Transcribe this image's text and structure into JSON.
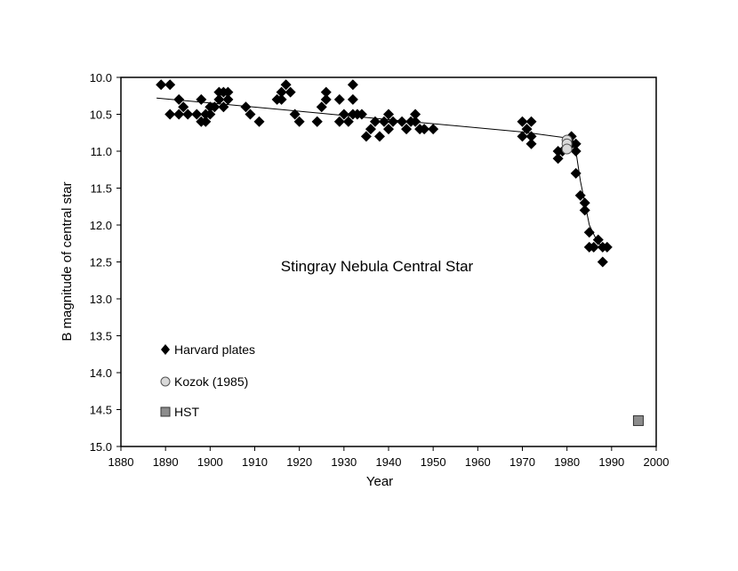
{
  "chart_data": {
    "type": "scatter",
    "title": "Stingray Nebula Central Star",
    "xlabel": "Year",
    "ylabel": "B magnitude of central star",
    "xlim": [
      1880,
      2000
    ],
    "ylim": [
      10.0,
      15.0
    ],
    "y_reversed": true,
    "xticks": [
      1880,
      1890,
      1900,
      1910,
      1920,
      1930,
      1940,
      1950,
      1960,
      1970,
      1980,
      1990,
      2000
    ],
    "yticks": [
      10.0,
      10.5,
      11.0,
      11.5,
      12.0,
      12.5,
      13.0,
      13.5,
      14.0,
      14.5,
      15.0
    ],
    "ytick_labels": [
      "10.0",
      "10.5",
      "11.0",
      "11.5",
      "12.0",
      "12.5",
      "13.0",
      "13.5",
      "14.0",
      "14.5",
      "15.0"
    ],
    "grid": false,
    "legend_position": "lower-left",
    "series": [
      {
        "name": "Harvard plates",
        "marker": "diamond",
        "color": "#000000",
        "points": [
          [
            1889,
            10.1
          ],
          [
            1891,
            10.1
          ],
          [
            1891,
            10.5
          ],
          [
            1893,
            10.3
          ],
          [
            1893,
            10.5
          ],
          [
            1894,
            10.4
          ],
          [
            1895,
            10.5
          ],
          [
            1897,
            10.5
          ],
          [
            1898,
            10.6
          ],
          [
            1898,
            10.3
          ],
          [
            1899,
            10.5
          ],
          [
            1899,
            10.6
          ],
          [
            1900,
            10.4
          ],
          [
            1900,
            10.5
          ],
          [
            1901,
            10.4
          ],
          [
            1902,
            10.2
          ],
          [
            1902,
            10.3
          ],
          [
            1903,
            10.2
          ],
          [
            1903,
            10.4
          ],
          [
            1904,
            10.3
          ],
          [
            1904,
            10.2
          ],
          [
            1908,
            10.4
          ],
          [
            1909,
            10.5
          ],
          [
            1911,
            10.6
          ],
          [
            1915,
            10.3
          ],
          [
            1916,
            10.2
          ],
          [
            1916,
            10.3
          ],
          [
            1917,
            10.1
          ],
          [
            1918,
            10.2
          ],
          [
            1919,
            10.5
          ],
          [
            1920,
            10.6
          ],
          [
            1924,
            10.6
          ],
          [
            1924,
            10.6
          ],
          [
            1925,
            10.4
          ],
          [
            1926,
            10.3
          ],
          [
            1926,
            10.2
          ],
          [
            1929,
            10.3
          ],
          [
            1929,
            10.6
          ],
          [
            1930,
            10.5
          ],
          [
            1931,
            10.6
          ],
          [
            1932,
            10.5
          ],
          [
            1932,
            10.1
          ],
          [
            1932,
            10.3
          ],
          [
            1933,
            10.5
          ],
          [
            1934,
            10.5
          ],
          [
            1935,
            10.8
          ],
          [
            1936,
            10.7
          ],
          [
            1937,
            10.6
          ],
          [
            1938,
            10.8
          ],
          [
            1939,
            10.6
          ],
          [
            1940,
            10.7
          ],
          [
            1940,
            10.5
          ],
          [
            1941,
            10.6
          ],
          [
            1943,
            10.6
          ],
          [
            1944,
            10.7
          ],
          [
            1945,
            10.6
          ],
          [
            1946,
            10.6
          ],
          [
            1946,
            10.5
          ],
          [
            1947,
            10.7
          ],
          [
            1948,
            10.7
          ],
          [
            1950,
            10.7
          ],
          [
            1970,
            10.6
          ],
          [
            1970,
            10.8
          ],
          [
            1971,
            10.7
          ],
          [
            1972,
            10.6
          ],
          [
            1972,
            10.8
          ],
          [
            1972,
            10.9
          ],
          [
            1978,
            11.0
          ],
          [
            1978,
            11.1
          ],
          [
            1979,
            11.0
          ],
          [
            1981,
            10.8
          ],
          [
            1981,
            10.9
          ],
          [
            1982,
            11.0
          ],
          [
            1982,
            10.9
          ],
          [
            1982,
            11.3
          ],
          [
            1983,
            11.6
          ],
          [
            1984,
            11.7
          ],
          [
            1984,
            11.8
          ],
          [
            1985,
            12.1
          ],
          [
            1985,
            12.3
          ],
          [
            1986,
            12.3
          ],
          [
            1987,
            12.2
          ],
          [
            1988,
            12.3
          ],
          [
            1988,
            12.5
          ],
          [
            1989,
            12.3
          ]
        ]
      },
      {
        "name": "Kozok (1985)",
        "marker": "circle",
        "color": "#d9d9d9",
        "points": [
          [
            1980,
            10.85
          ],
          [
            1980,
            10.9
          ],
          [
            1980,
            10.97
          ]
        ]
      },
      {
        "name": "HST",
        "marker": "square",
        "color": "#8c8c8c",
        "points": [
          [
            1996,
            14.65
          ]
        ]
      }
    ],
    "trend_line": [
      [
        1888,
        10.28
      ],
      [
        1970,
        10.74
      ],
      [
        1980,
        10.82
      ],
      [
        1982,
        11.0
      ],
      [
        1983,
        11.4
      ],
      [
        1985,
        12.0
      ],
      [
        1987,
        12.25
      ],
      [
        1989,
        12.3
      ]
    ]
  }
}
